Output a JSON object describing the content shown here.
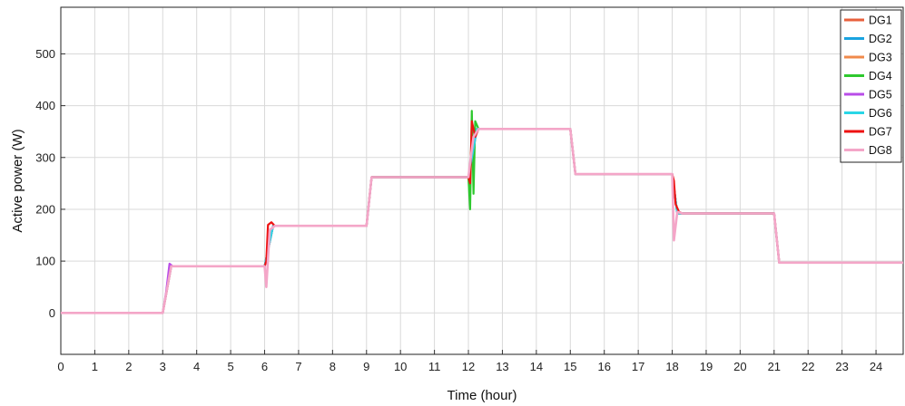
{
  "chart_data": {
    "type": "line",
    "title": "",
    "xlabel": "Time (hour)",
    "ylabel": "Active power (W)",
    "xlim": [
      0,
      24.8
    ],
    "ylim": [
      -80,
      590
    ],
    "x_ticks": [
      0,
      1,
      2,
      3,
      4,
      5,
      6,
      7,
      8,
      9,
      10,
      11,
      12,
      13,
      14,
      15,
      16,
      17,
      18,
      19,
      20,
      21,
      22,
      23,
      24
    ],
    "y_ticks": [
      0,
      100,
      200,
      300,
      400,
      500
    ],
    "grid": true,
    "legend_position": "top-right",
    "legend": [
      "DG1",
      "DG2",
      "DG3",
      "DG4",
      "DG5",
      "DG6",
      "DG7",
      "DG8"
    ],
    "series": [
      {
        "name": "DG1",
        "color": "#e8603c",
        "points": [
          [
            0,
            0
          ],
          [
            3,
            0
          ],
          [
            3.25,
            90
          ],
          [
            6,
            90
          ],
          [
            6.25,
            168
          ],
          [
            9,
            168
          ],
          [
            9.15,
            262
          ],
          [
            12,
            262
          ],
          [
            12.25,
            355
          ],
          [
            15,
            355
          ],
          [
            15.15,
            268
          ],
          [
            18,
            268
          ],
          [
            18.15,
            192
          ],
          [
            21,
            192
          ],
          [
            21.15,
            97
          ],
          [
            24.8,
            97
          ]
        ]
      },
      {
        "name": "DG2",
        "color": "#1aa3e0",
        "points": [
          [
            0,
            0
          ],
          [
            3,
            0
          ],
          [
            3.25,
            90
          ],
          [
            6,
            90
          ],
          [
            6.25,
            168
          ],
          [
            9,
            168
          ],
          [
            9.15,
            262
          ],
          [
            12,
            262
          ],
          [
            12.25,
            355
          ],
          [
            15,
            355
          ],
          [
            15.15,
            268
          ],
          [
            18,
            268
          ],
          [
            18.15,
            192
          ],
          [
            21,
            192
          ],
          [
            21.15,
            97
          ],
          [
            24.8,
            97
          ]
        ]
      },
      {
        "name": "DG3",
        "color": "#f08a4b",
        "points": [
          [
            0,
            0
          ],
          [
            3,
            0
          ],
          [
            3.25,
            90
          ],
          [
            6,
            90
          ],
          [
            6.25,
            168
          ],
          [
            9,
            168
          ],
          [
            9.15,
            262
          ],
          [
            12,
            262
          ],
          [
            12.25,
            355
          ],
          [
            15,
            355
          ],
          [
            15.15,
            268
          ],
          [
            18,
            268
          ],
          [
            18.15,
            192
          ],
          [
            21,
            192
          ],
          [
            21.15,
            97
          ],
          [
            24.8,
            97
          ]
        ]
      },
      {
        "name": "DG4",
        "color": "#2ec82e",
        "points": [
          [
            0,
            0
          ],
          [
            3,
            0
          ],
          [
            3.25,
            90
          ],
          [
            6,
            90
          ],
          [
            6.25,
            168
          ],
          [
            9,
            168
          ],
          [
            9.15,
            262
          ],
          [
            12,
            262
          ],
          [
            12.05,
            200
          ],
          [
            12.1,
            390
          ],
          [
            12.15,
            230
          ],
          [
            12.2,
            370
          ],
          [
            12.3,
            355
          ],
          [
            15,
            355
          ],
          [
            15.15,
            268
          ],
          [
            18,
            268
          ],
          [
            18.15,
            192
          ],
          [
            21,
            192
          ],
          [
            21.15,
            97
          ],
          [
            24.8,
            97
          ]
        ]
      },
      {
        "name": "DG5",
        "color": "#b84ce8",
        "points": [
          [
            0,
            0
          ],
          [
            3,
            0
          ],
          [
            3.1,
            40
          ],
          [
            3.2,
            95
          ],
          [
            3.3,
            90
          ],
          [
            6,
            90
          ],
          [
            6.25,
            168
          ],
          [
            9,
            168
          ],
          [
            9.15,
            262
          ],
          [
            12,
            262
          ],
          [
            12.25,
            355
          ],
          [
            15,
            355
          ],
          [
            15.15,
            268
          ],
          [
            18,
            268
          ],
          [
            18.15,
            192
          ],
          [
            21,
            192
          ],
          [
            21.15,
            97
          ],
          [
            24.8,
            97
          ]
        ]
      },
      {
        "name": "DG6",
        "color": "#29d6e6",
        "points": [
          [
            0,
            0
          ],
          [
            3,
            0
          ],
          [
            3.25,
            90
          ],
          [
            6,
            90
          ],
          [
            6.25,
            168
          ],
          [
            9,
            168
          ],
          [
            9.15,
            262
          ],
          [
            12,
            262
          ],
          [
            12.25,
            355
          ],
          [
            15,
            355
          ],
          [
            15.15,
            268
          ],
          [
            18,
            268
          ],
          [
            18.15,
            192
          ],
          [
            21,
            192
          ],
          [
            21.15,
            97
          ],
          [
            24.8,
            97
          ]
        ]
      },
      {
        "name": "DG7",
        "color": "#ee1111",
        "points": [
          [
            0,
            0
          ],
          [
            3,
            0
          ],
          [
            3.25,
            90
          ],
          [
            6,
            90
          ],
          [
            6.05,
            100
          ],
          [
            6.1,
            170
          ],
          [
            6.2,
            175
          ],
          [
            6.3,
            168
          ],
          [
            9,
            168
          ],
          [
            9.15,
            262
          ],
          [
            12,
            262
          ],
          [
            12.05,
            250
          ],
          [
            12.1,
            370
          ],
          [
            12.2,
            340
          ],
          [
            12.3,
            355
          ],
          [
            15,
            355
          ],
          [
            15.15,
            268
          ],
          [
            18,
            268
          ],
          [
            18.05,
            255
          ],
          [
            18.1,
            210
          ],
          [
            18.2,
            195
          ],
          [
            18.3,
            192
          ],
          [
            21,
            192
          ],
          [
            21.15,
            97
          ],
          [
            24.8,
            97
          ]
        ]
      },
      {
        "name": "DG8",
        "color": "#f4a6c8",
        "points": [
          [
            0,
            0
          ],
          [
            3,
            0
          ],
          [
            3.25,
            90
          ],
          [
            6,
            90
          ],
          [
            6.05,
            50
          ],
          [
            6.15,
            160
          ],
          [
            6.3,
            168
          ],
          [
            9,
            168
          ],
          [
            9.15,
            262
          ],
          [
            12,
            262
          ],
          [
            12.05,
            290
          ],
          [
            12.15,
            340
          ],
          [
            12.3,
            355
          ],
          [
            15,
            355
          ],
          [
            15.15,
            268
          ],
          [
            18,
            268
          ],
          [
            18.05,
            140
          ],
          [
            18.15,
            195
          ],
          [
            18.3,
            192
          ],
          [
            21,
            192
          ],
          [
            21.15,
            97
          ],
          [
            24.8,
            97
          ]
        ]
      }
    ]
  }
}
